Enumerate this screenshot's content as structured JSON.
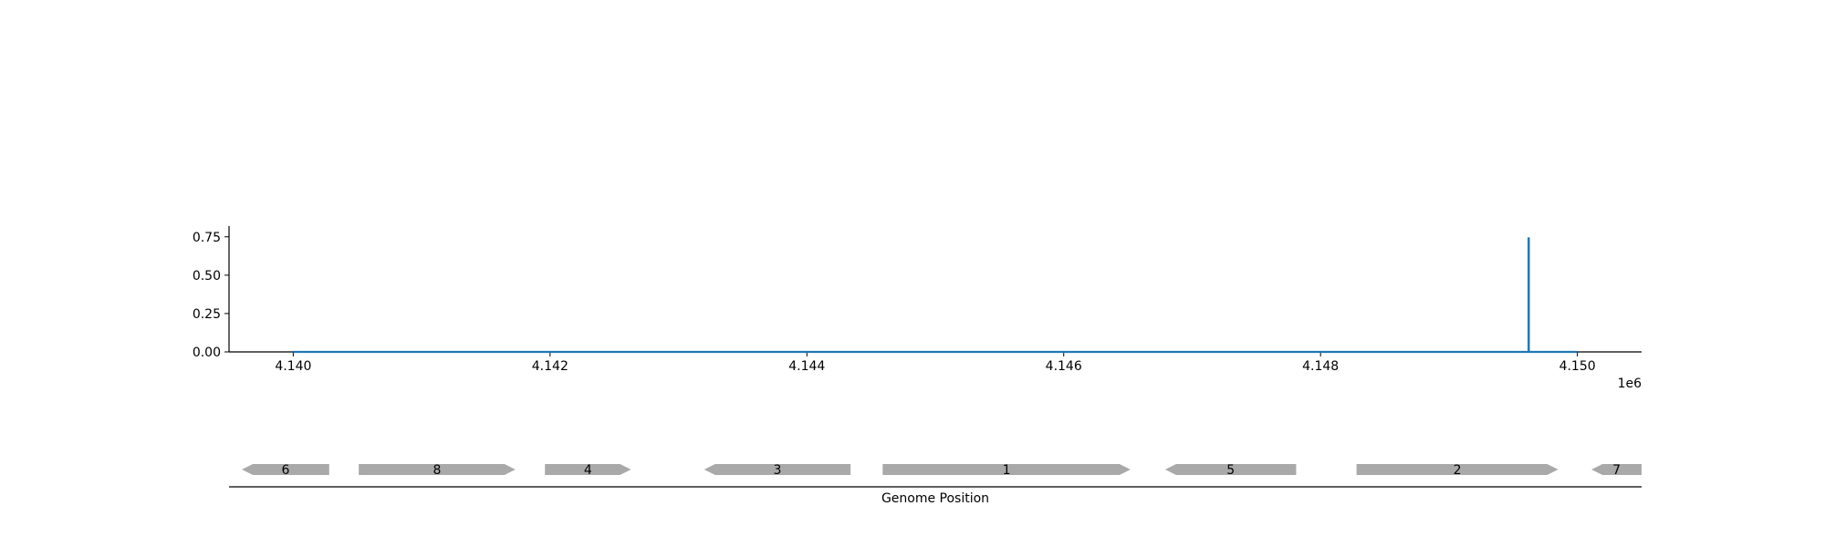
{
  "chart_data": [
    {
      "type": "line",
      "series": [
        {
          "color": "#1f77b4",
          "points": [
            [
              4140000,
              0.0
            ],
            [
              4149620,
              0.0
            ],
            [
              4149620,
              0.74
            ],
            [
              4149622,
              0.74
            ],
            [
              4149622,
              0.0
            ],
            [
              4150000,
              0.0
            ]
          ]
        }
      ],
      "xlim": [
        4139500,
        4150500
      ],
      "ylim": [
        0,
        0.82
      ],
      "x_ticks": [
        4140000,
        4142000,
        4144000,
        4146000,
        4148000,
        4150000
      ],
      "x_tick_labels": [
        "4.140",
        "4.142",
        "4.144",
        "4.146",
        "4.148",
        "4.150"
      ],
      "x_offset_label": "1e6",
      "y_ticks": [
        0.0,
        0.25,
        0.5,
        0.75
      ],
      "y_tick_labels": [
        "0.00",
        "0.25",
        "0.50",
        "0.75"
      ],
      "grid": false,
      "spines": [
        "left",
        "bottom"
      ]
    },
    {
      "type": "gene_track",
      "xlabel": "Genome Position",
      "color": "#a9a9a9",
      "genes": [
        {
          "label": "6",
          "start": 4139600,
          "end": 4140280,
          "strand": "-"
        },
        {
          "label": "8",
          "start": 4140510,
          "end": 4141730,
          "strand": "+"
        },
        {
          "label": "4",
          "start": 4141960,
          "end": 4142630,
          "strand": "+"
        },
        {
          "label": "3",
          "start": 4143200,
          "end": 4144340,
          "strand": "-"
        },
        {
          "label": "1",
          "start": 4144590,
          "end": 4146520,
          "strand": "+"
        },
        {
          "label": "5",
          "start": 4146790,
          "end": 4147810,
          "strand": "-"
        },
        {
          "label": "2",
          "start": 4148280,
          "end": 4149850,
          "strand": "+"
        },
        {
          "label": "7",
          "start": 4150110,
          "end": 4150540,
          "strand": "-"
        }
      ]
    }
  ]
}
